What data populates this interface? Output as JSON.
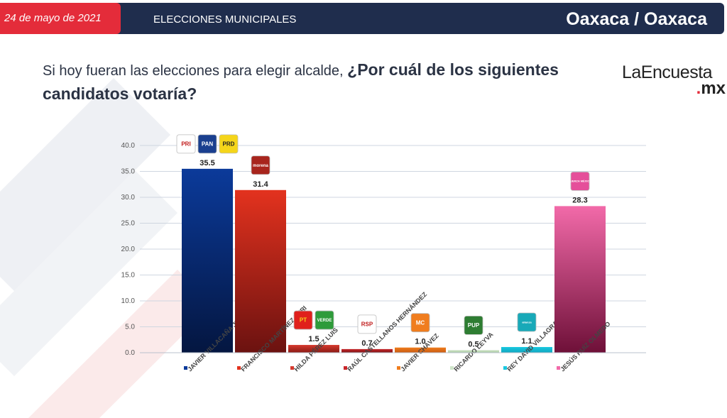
{
  "header": {
    "date": "24 de mayo de 2021",
    "section": "ELECCIONES MUNICIPALES",
    "location": "Oaxaca / Oaxaca"
  },
  "question": {
    "part1": "Si hoy fueran las elecciones para elegir alcalde, ",
    "part2": "¿Por cuál de los siguientes candidatos votaría?"
  },
  "brand": {
    "name": "LaEncuesta",
    "tld": "mx"
  },
  "colors": {
    "header": "#1f2d4d",
    "accent": "#e42c3a",
    "grid": "#cfd6e0"
  },
  "chart_data": {
    "type": "bar",
    "ylim": [
      0,
      40
    ],
    "yticks": [
      "0.0",
      "5.0",
      "10.0",
      "15.0",
      "20.0",
      "25.0",
      "30.0",
      "35.0",
      "40.0"
    ],
    "grid": true,
    "categories": [
      "JAVIER VILLACAÑA JIMÉNEZ",
      "FRANCISCO MARTÍNEZ NERI",
      "HILDA PÉREZ LUIS",
      "RAÚL CASTELLANOS HERNÁNDEZ",
      "JAVIER CHÁVEZ",
      "RICARDO LEYVA",
      "REY DAVID VILLAGRANA",
      "JESÚS RUÍZ OLMEDO"
    ],
    "values": [
      35.5,
      31.4,
      1.5,
      0.7,
      1.0,
      0.5,
      1.1,
      28.3
    ],
    "labels": [
      "35.5",
      "31.4",
      "1.5",
      "0.7",
      "1.0",
      "0.5",
      "1.1",
      "28.3"
    ],
    "colors": [
      [
        "#0b3a9a",
        "#041640"
      ],
      [
        "#e3321e",
        "#6b1210"
      ],
      [
        "#d63a2e",
        "#8a1a14"
      ],
      [
        "#c9262a",
        "#7a1416"
      ],
      [
        "#f07d1e",
        "#c85a10"
      ],
      [
        "#cfe5c9",
        "#a8c9a0"
      ],
      [
        "#19c8e0",
        "#10a6bf"
      ],
      [
        "#f26aa9",
        "#6e1038"
      ]
    ],
    "logos": [
      [
        {
          "text": "PRI",
          "bg": "#ffffff",
          "fg": "#c01818"
        },
        {
          "text": "PAN",
          "bg": "#1a3f8f",
          "fg": "#ffffff"
        },
        {
          "text": "PRD",
          "bg": "#f5d51a",
          "fg": "#222222"
        }
      ],
      [
        {
          "text": "morena",
          "bg": "#a8251d",
          "fg": "#ffffff"
        }
      ],
      [
        {
          "text": "PT",
          "bg": "#e0201c",
          "fg": "#f5d51a"
        },
        {
          "text": "VERDE",
          "bg": "#2e9b3a",
          "fg": "#ffffff"
        }
      ],
      [
        {
          "text": "RSP",
          "bg": "#ffffff",
          "fg": "#c01818"
        }
      ],
      [
        {
          "text": "MC",
          "bg": "#f07d1e",
          "fg": "#ffffff"
        }
      ],
      [
        {
          "text": "PUP",
          "bg": "#2e7d32",
          "fg": "#ffffff"
        }
      ],
      [
        {
          "text": "alianza",
          "bg": "#18a9b8",
          "fg": "#ffffff"
        }
      ],
      [
        {
          "text": "FUERZA MÉXICO",
          "bg": "#e54f9a",
          "fg": "#ffffff"
        }
      ]
    ]
  }
}
